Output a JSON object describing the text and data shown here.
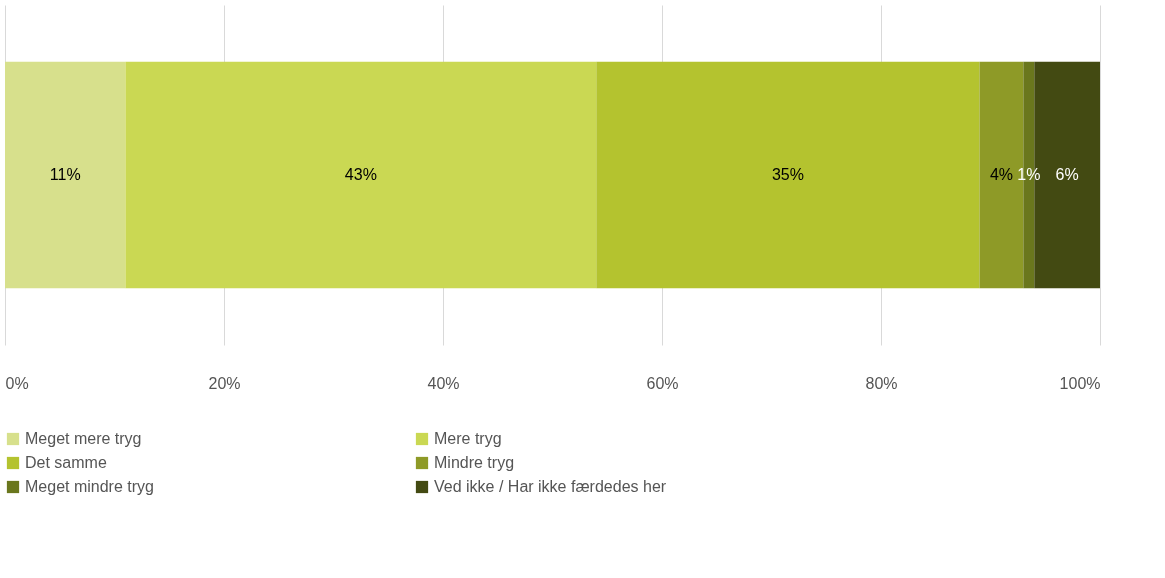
{
  "chart_data": {
    "type": "bar",
    "orientation": "horizontal",
    "stacked": true,
    "categories": [
      null
    ],
    "series": [
      {
        "name": "Meget mere tryg",
        "color": "#d7e08c",
        "values": [
          11
        ],
        "value_labels": [
          "11%"
        ]
      },
      {
        "name": "Mere tryg",
        "color": "#cad853",
        "values": [
          43
        ],
        "value_labels": [
          "43%"
        ]
      },
      {
        "name": "Det samme",
        "color": "#b4c32f",
        "values": [
          35
        ],
        "value_labels": [
          "35%"
        ]
      },
      {
        "name": "Mindre tryg",
        "color": "#8e9a27",
        "values": [
          4
        ],
        "value_labels": [
          "4%"
        ]
      },
      {
        "name": "Meget mindre tryg",
        "color": "#6a771d",
        "values": [
          1
        ],
        "value_labels": [
          "1%"
        ]
      },
      {
        "name": "Ved ikke / Har ikke færdedes her",
        "color": "#434a12",
        "values": [
          6
        ],
        "value_labels": [
          "6%"
        ]
      }
    ],
    "xlim": [
      0,
      100
    ],
    "xticks": [
      {
        "value": 0,
        "label": "0%"
      },
      {
        "value": 20,
        "label": "20%"
      },
      {
        "value": 40,
        "label": "40%"
      },
      {
        "value": 60,
        "label": "60%"
      },
      {
        "value": 80,
        "label": "80%"
      },
      {
        "value": 100,
        "label": "100%"
      }
    ],
    "grid": "x",
    "legend": "bottom",
    "tick_labels": "x"
  }
}
